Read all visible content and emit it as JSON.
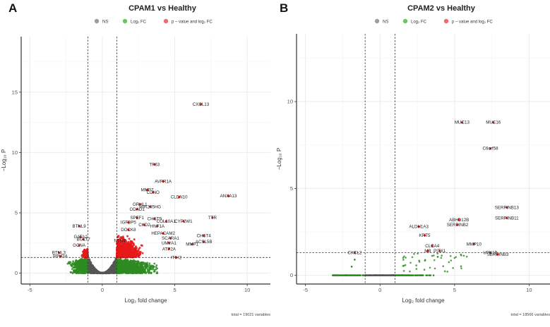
{
  "panels": [
    {
      "letter": "A",
      "title": "CPAM1 vs Healthy",
      "legend": [
        "NS",
        "Log₂ FC",
        "p – value and log₂ FC"
      ],
      "total": "total = 19021 variables"
    },
    {
      "letter": "B",
      "title": "CPAM2 vs Healthy",
      "legend": [
        "NS",
        "Log₂ FC",
        "p – value and log₂ FC"
      ],
      "total": "total = 18566 variables"
    }
  ],
  "colors": {
    "ns": "#555555",
    "fc": "#2e8b22",
    "sig": "#e8191a",
    "legend_ns": "#9e9e9e",
    "legend_fc": "#6cc36a",
    "legend_sig": "#f26a6a"
  },
  "chart_data": [
    {
      "type": "scatter",
      "title": "CPAM1 vs Healthy",
      "xlabel": "Log₂ fold change",
      "ylabel": "−Log₁₀ P",
      "xlim": [
        -5.6,
        11.6
      ],
      "ylim": [
        -0.9,
        19.6
      ],
      "xticks": [
        -5,
        0,
        5,
        10
      ],
      "yticks": [
        0,
        5,
        10,
        15
      ],
      "grid": true,
      "legend_position": "top",
      "fc_cutoff": [
        -1,
        1
      ],
      "p_cutoff": 1.3,
      "total_variables": 19021,
      "labeled_points": [
        {
          "label": "CXCL13",
          "x": 6.8,
          "y": 14.0
        },
        {
          "label": "TP63",
          "x": 3.6,
          "y": 9.0
        },
        {
          "label": "AVPR1A",
          "x": 4.2,
          "y": 7.6
        },
        {
          "label": "MMP7",
          "x": 3.1,
          "y": 6.9
        },
        {
          "label": "CDNO",
          "x": 3.5,
          "y": 6.7
        },
        {
          "label": "CLDN10",
          "x": 5.3,
          "y": 6.3
        },
        {
          "label": "ANXA13",
          "x": 8.7,
          "y": 6.4
        },
        {
          "label": "GRHL1",
          "x": 2.6,
          "y": 5.7
        },
        {
          "label": "MIR205HG",
          "x": 3.3,
          "y": 5.5
        },
        {
          "label": "ODAD1",
          "x": 2.4,
          "y": 5.3
        },
        {
          "label": "TTR",
          "x": 7.6,
          "y": 4.6
        },
        {
          "label": "SPEF1",
          "x": 2.4,
          "y": 4.6
        },
        {
          "label": "CHST9",
          "x": 3.6,
          "y": 4.5
        },
        {
          "label": "COL10A1",
          "x": 4.4,
          "y": 4.3
        },
        {
          "label": "CYP2W1",
          "x": 5.6,
          "y": 4.3
        },
        {
          "label": "IGFBP5",
          "x": 1.8,
          "y": 4.2
        },
        {
          "label": "CKD2",
          "x": 2.9,
          "y": 4.0
        },
        {
          "label": "HNF1A",
          "x": 3.8,
          "y": 3.9
        },
        {
          "label": "BTNL9",
          "x": -1.6,
          "y": 3.9
        },
        {
          "label": "DOCK8",
          "x": 1.8,
          "y": 3.6
        },
        {
          "label": "HEPACAM2",
          "x": 4.2,
          "y": 3.3
        },
        {
          "label": "CHST4",
          "x": 7.0,
          "y": 3.1
        },
        {
          "label": "SCARA1",
          "x": 4.7,
          "y": 2.9
        },
        {
          "label": "GATA2",
          "x": -1.5,
          "y": 3.0
        },
        {
          "label": "BGLT7",
          "x": -1.3,
          "y": 2.8
        },
        {
          "label": "ACSL5B",
          "x": 7.0,
          "y": 2.6
        },
        {
          "label": "UMYA1",
          "x": 4.6,
          "y": 2.5
        },
        {
          "label": "MMP1",
          "x": 6.2,
          "y": 2.4
        },
        {
          "label": "NTN4",
          "x": 1.2,
          "y": 2.7
        },
        {
          "label": "GCNA",
          "x": -1.6,
          "y": 2.3
        },
        {
          "label": "BTNL3",
          "x": -3.0,
          "y": 1.7
        },
        {
          "label": "RPH3A",
          "x": -2.9,
          "y": 1.4
        },
        {
          "label": "ATP2A",
          "x": 4.6,
          "y": 2.0
        },
        {
          "label": "ITIH2",
          "x": 5.1,
          "y": 1.3
        }
      ]
    },
    {
      "type": "scatter",
      "title": "CPAM2 vs Healthy",
      "xlabel": "Log₂ fold change",
      "ylabel": "−Log₁₀ P",
      "xlim": [
        -5.6,
        11.4
      ],
      "ylim": [
        -0.5,
        13.9
      ],
      "xticks": [
        -5,
        0,
        5,
        10
      ],
      "yticks": [
        0,
        5,
        10
      ],
      "grid": true,
      "legend_position": "top",
      "fc_cutoff": [
        -1,
        1
      ],
      "p_cutoff": 1.3,
      "total_variables": 18566,
      "labeled_points": [
        {
          "label": "MUC13",
          "x": 5.5,
          "y": 8.8
        },
        {
          "label": "MUC16",
          "x": 7.6,
          "y": 8.8
        },
        {
          "label": "C6orf58",
          "x": 7.4,
          "y": 7.3
        },
        {
          "label": "SERPINB13",
          "x": 8.5,
          "y": 3.9
        },
        {
          "label": "SERPINB11",
          "x": 8.5,
          "y": 3.3
        },
        {
          "label": "ABHD12B",
          "x": 5.3,
          "y": 3.2
        },
        {
          "label": "SERPINB2",
          "x": 5.2,
          "y": 2.9
        },
        {
          "label": "ALDH1A3",
          "x": 2.6,
          "y": 2.8
        },
        {
          "label": "KRT5",
          "x": 3.0,
          "y": 2.3
        },
        {
          "label": "CLCA4",
          "x": 3.5,
          "y": 1.7
        },
        {
          "label": "MMP10",
          "x": 6.3,
          "y": 1.8
        },
        {
          "label": "PITX1",
          "x": 4.0,
          "y": 1.4
        },
        {
          "label": "UPK1B",
          "x": 7.4,
          "y": 1.3
        },
        {
          "label": "MB",
          "x": 3.2,
          "y": 1.4
        },
        {
          "label": "SERPINB3",
          "x": 7.9,
          "y": 1.2
        },
        {
          "label": "CXCL2",
          "x": -1.7,
          "y": 1.3
        }
      ]
    }
  ]
}
